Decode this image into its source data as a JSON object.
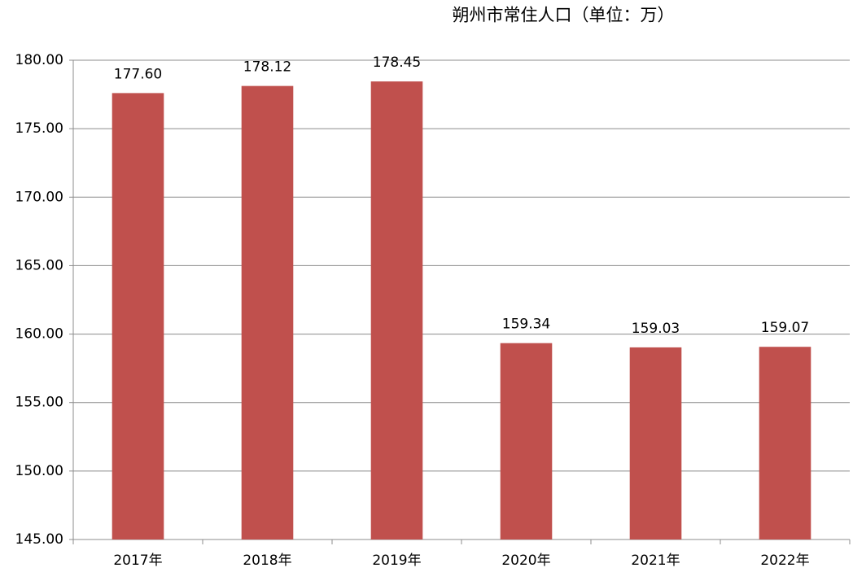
{
  "chart_data": {
    "type": "bar",
    "title": "朔州市常住人口（单位：万）",
    "categories": [
      "2017年",
      "2018年",
      "2019年",
      "2020年",
      "2021年",
      "2022年"
    ],
    "values": [
      177.6,
      178.12,
      178.45,
      159.34,
      159.03,
      159.07
    ],
    "value_labels": [
      "177.60",
      "178.12",
      "178.45",
      "159.34",
      "159.03",
      "159.07"
    ],
    "color": "#c0504d",
    "ylim": [
      145,
      180
    ],
    "yticks": [
      {
        "value": 145,
        "label": "145.00"
      },
      {
        "value": 150,
        "label": "150.00"
      },
      {
        "value": 155,
        "label": "155.00"
      },
      {
        "value": 160,
        "label": "160.00"
      },
      {
        "value": 165,
        "label": "165.00"
      },
      {
        "value": 170,
        "label": "170.00"
      },
      {
        "value": 175,
        "label": "175.00"
      },
      {
        "value": 180,
        "label": "180.00"
      }
    ],
    "grid": true
  }
}
